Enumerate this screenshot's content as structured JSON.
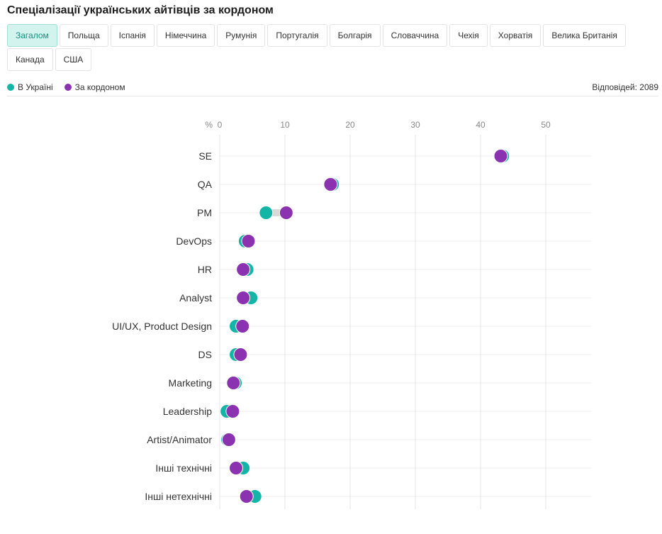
{
  "title": "Спеціалізації українських айтівців за кордоном",
  "tabs": [
    {
      "label": "Загалом",
      "active": true
    },
    {
      "label": "Польща"
    },
    {
      "label": "Іспанія"
    },
    {
      "label": "Німеччина"
    },
    {
      "label": "Румунія"
    },
    {
      "label": "Португалія"
    },
    {
      "label": "Болгарія"
    },
    {
      "label": "Словаччина"
    },
    {
      "label": "Чехія"
    },
    {
      "label": "Хорватія"
    },
    {
      "label": "Велика Британія"
    },
    {
      "label": "Канада"
    },
    {
      "label": "США"
    }
  ],
  "responses": "Відповідей: 2089",
  "colors": {
    "ukraine": "#13b5a6",
    "abroad": "#8a32b0",
    "connector": "#d9d9d9",
    "accent_tab_bg": "#d3f3ee"
  },
  "chart_data": {
    "type": "scatter",
    "unit_label": "%",
    "xlim": [
      0,
      57
    ],
    "xticks": [
      0,
      10,
      20,
      30,
      40,
      50
    ],
    "grid": true,
    "legend_position": "top-left",
    "categories": [
      "SE",
      "QA",
      "PM",
      "DevOps",
      "HR",
      "Analyst",
      "UI/UX, Product Design",
      "DS",
      "Marketing",
      "Leadership",
      "Artist/Animator",
      "Інші технічні",
      "Інші нетехнічні"
    ],
    "series": [
      {
        "name": "В Україні",
        "values": [
          43.4,
          17.3,
          7.1,
          3.9,
          4.2,
          4.8,
          2.5,
          2.5,
          2.4,
          1.1,
          1.2,
          3.6,
          5.4
        ]
      },
      {
        "name": "За кордоном",
        "values": [
          43.1,
          17.0,
          10.2,
          4.4,
          3.6,
          3.6,
          3.5,
          3.2,
          2.1,
          2.0,
          1.4,
          2.5,
          4.1
        ]
      }
    ]
  }
}
